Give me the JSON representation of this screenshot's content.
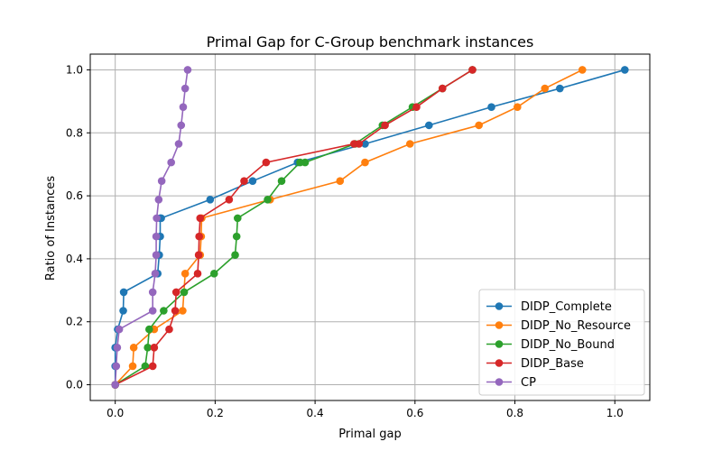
{
  "chart_data": {
    "type": "line",
    "title": "Primal Gap for C-Group benchmark instances",
    "xlabel": "Primal gap",
    "ylabel": "Ratio of Instances",
    "xlim": [
      -0.05,
      1.07
    ],
    "ylim": [
      -0.05,
      1.05
    ],
    "xticks": [
      0.0,
      0.2,
      0.4,
      0.6,
      0.8,
      1.0
    ],
    "yticks": [
      0.0,
      0.2,
      0.4,
      0.6,
      0.8,
      1.0
    ],
    "xtick_labels": [
      "0.0",
      "0.2",
      "0.4",
      "0.6",
      "0.8",
      "1.0"
    ],
    "ytick_labels": [
      "0.0",
      "0.2",
      "0.4",
      "0.6",
      "0.8",
      "1.0"
    ],
    "grid": true,
    "legend_position": "lower-right",
    "series": [
      {
        "name": "DIDP_Complete",
        "color": "#1f77b4",
        "x": [
          0.0,
          0.0,
          0.0,
          0.005,
          0.016,
          0.017,
          0.085,
          0.088,
          0.09,
          0.09,
          0.092,
          0.19,
          0.275,
          0.365,
          0.5,
          0.628,
          0.753,
          0.89,
          1.02
        ],
        "y": [
          0.0,
          0.059,
          0.118,
          0.176,
          0.235,
          0.294,
          0.353,
          0.412,
          0.471,
          0.529,
          0.529,
          0.588,
          0.647,
          0.706,
          0.765,
          0.824,
          0.882,
          0.941,
          1.0
        ]
      },
      {
        "name": "DIDP_No_Resource",
        "color": "#ff7f0e",
        "x": [
          0.0,
          0.035,
          0.037,
          0.078,
          0.135,
          0.14,
          0.17,
          0.172,
          0.173,
          0.31,
          0.45,
          0.5,
          0.59,
          0.728,
          0.805,
          0.86,
          0.935
        ],
        "y": [
          0.0,
          0.059,
          0.118,
          0.176,
          0.235,
          0.353,
          0.412,
          0.471,
          0.529,
          0.588,
          0.647,
          0.706,
          0.765,
          0.824,
          0.882,
          0.941,
          1.0
        ]
      },
      {
        "name": "DIDP_No_Bound",
        "color": "#2ca02c",
        "x": [
          0.0,
          0.06,
          0.065,
          0.068,
          0.097,
          0.138,
          0.198,
          0.24,
          0.243,
          0.245,
          0.305,
          0.333,
          0.37,
          0.38,
          0.48,
          0.535,
          0.595,
          0.655,
          0.715
        ],
        "y": [
          0.0,
          0.059,
          0.118,
          0.176,
          0.235,
          0.294,
          0.353,
          0.412,
          0.471,
          0.529,
          0.588,
          0.647,
          0.706,
          0.706,
          0.765,
          0.824,
          0.882,
          0.941,
          1.0
        ]
      },
      {
        "name": "DIDP_Base",
        "color": "#d62728",
        "x": [
          0.0,
          0.075,
          0.078,
          0.108,
          0.12,
          0.122,
          0.165,
          0.167,
          0.168,
          0.17,
          0.228,
          0.258,
          0.302,
          0.478,
          0.488,
          0.54,
          0.603,
          0.655,
          0.715
        ],
        "y": [
          0.0,
          0.059,
          0.118,
          0.176,
          0.235,
          0.294,
          0.353,
          0.412,
          0.471,
          0.529,
          0.588,
          0.647,
          0.706,
          0.765,
          0.765,
          0.824,
          0.882,
          0.941,
          1.0
        ]
      },
      {
        "name": "CP",
        "color": "#9467bd",
        "x": [
          0.0,
          0.002,
          0.004,
          0.008,
          0.075,
          0.075,
          0.08,
          0.082,
          0.082,
          0.083,
          0.087,
          0.093,
          0.112,
          0.127,
          0.132,
          0.136,
          0.14,
          0.145
        ],
        "y": [
          0.0,
          0.059,
          0.118,
          0.176,
          0.235,
          0.294,
          0.353,
          0.412,
          0.471,
          0.529,
          0.588,
          0.647,
          0.706,
          0.765,
          0.824,
          0.882,
          0.941,
          1.0
        ]
      }
    ]
  }
}
